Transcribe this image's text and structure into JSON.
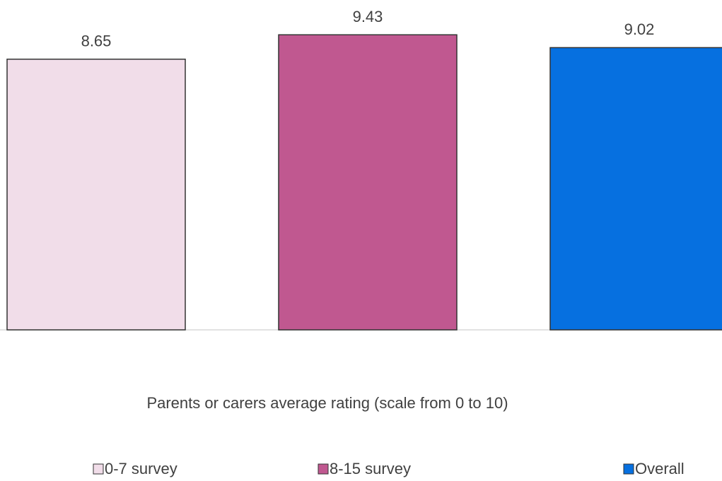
{
  "chart_data": {
    "type": "bar",
    "categories": [
      "Parents or carers average rating (scale from 0 to 10)"
    ],
    "series": [
      {
        "name": "0-7 survey",
        "color": "#f1dde9",
        "values": [
          8.65
        ]
      },
      {
        "name": "8-15 survey",
        "color": "#c05890",
        "values": [
          9.43
        ]
      },
      {
        "name": "Overall",
        "color": "#0670e0",
        "values": [
          9.02
        ]
      }
    ],
    "ylim": [
      0,
      10
    ]
  }
}
